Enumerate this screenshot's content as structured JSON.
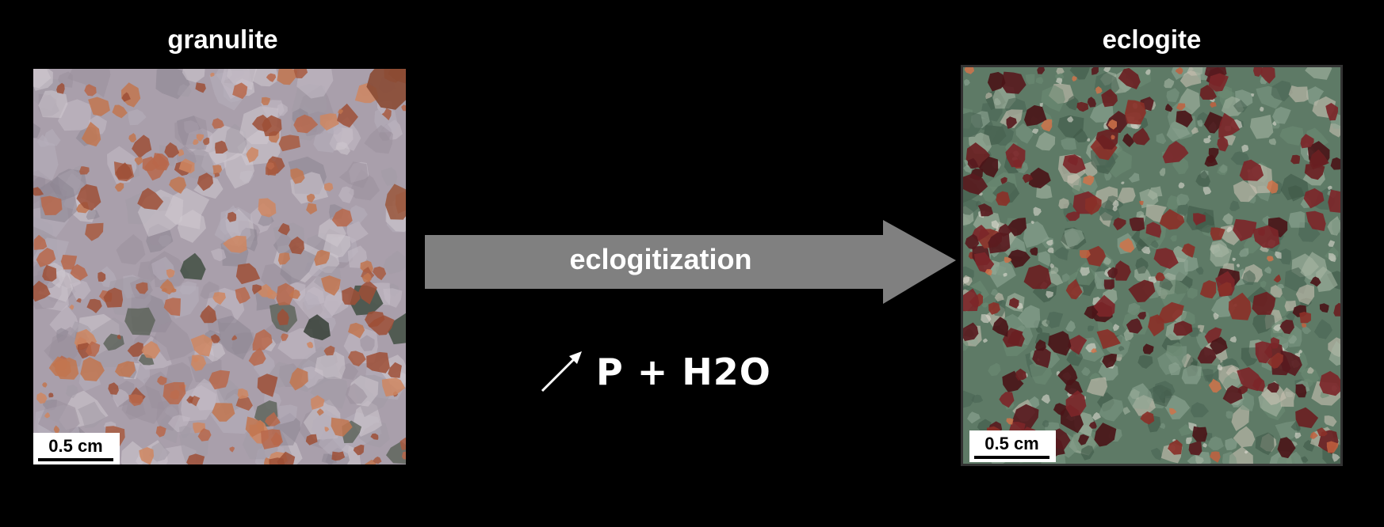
{
  "left_panel": {
    "title": "granulite",
    "scale_label": "0.5 cm"
  },
  "right_panel": {
    "title": "eclogite",
    "scale_label": "0.5 cm"
  },
  "process": {
    "label": "eclogitization",
    "condition": "P + H2O",
    "condition_icon": "increase-arrow-icon"
  },
  "colors": {
    "background": "#000000",
    "arrow": "#808080",
    "text": "#ffffff",
    "granulite_matrix": "#a89ca8",
    "granulite_garnet": "#b86a4a",
    "eclogite_matrix": "#5f7a68",
    "eclogite_garnet": "#6a1f22"
  }
}
